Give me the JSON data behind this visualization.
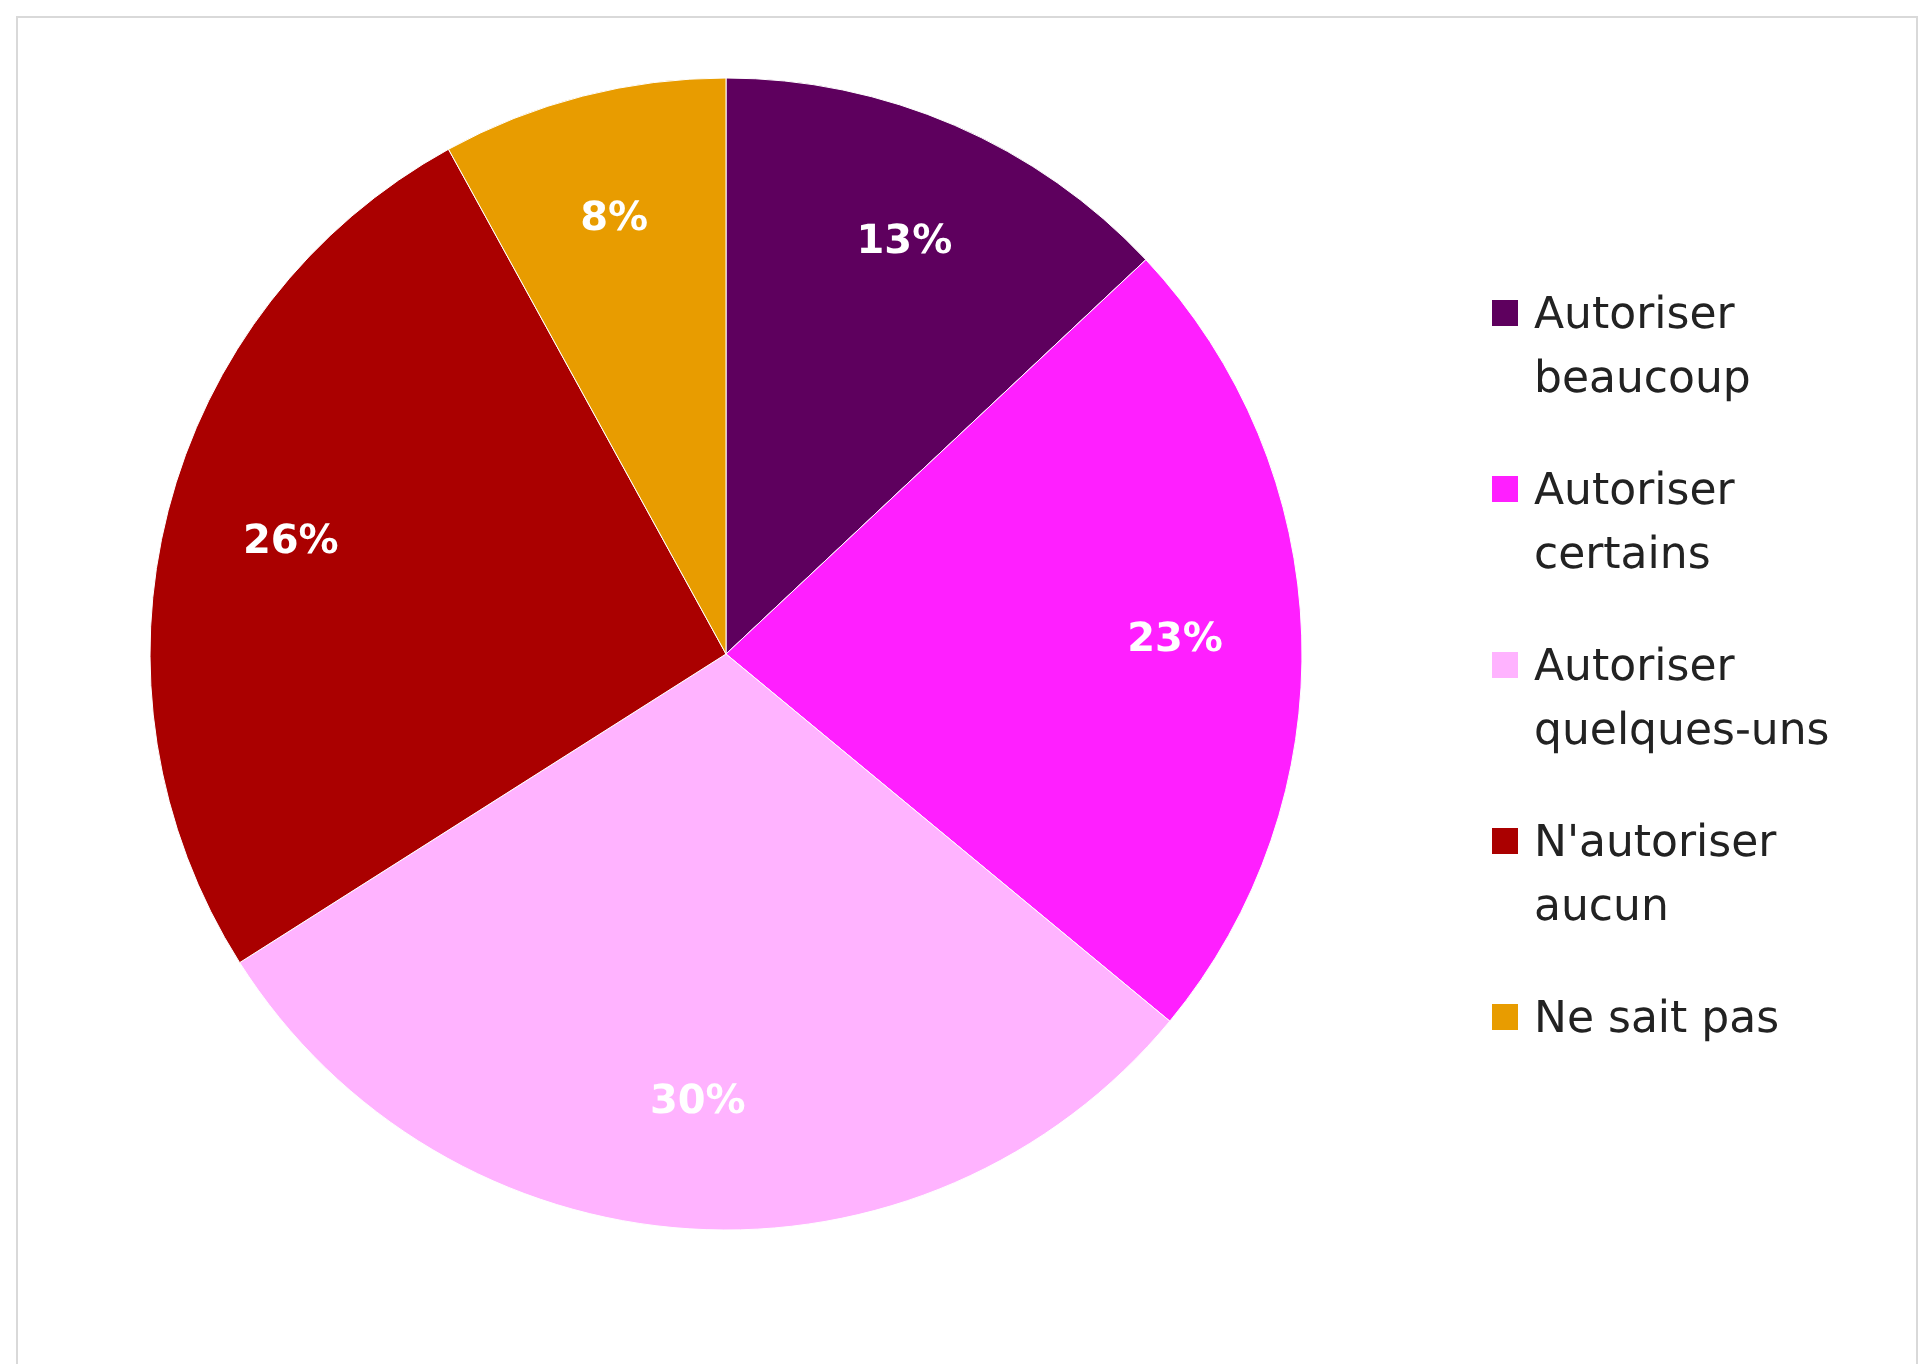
{
  "chart_data": {
    "type": "pie",
    "categories": [
      "Autoriser beaucoup",
      "Autoriser certains",
      "Autoriser quelques-uns",
      "N'autoriser aucun",
      "Ne sait pas"
    ],
    "values": [
      13,
      23,
      30,
      26,
      8
    ],
    "colors": [
      "#5e005e",
      "#ff1fff",
      "#ffb3ff",
      "#aa0000",
      "#e89c00"
    ],
    "value_labels": [
      "13%",
      "23%",
      "30%",
      "26%",
      "8%"
    ],
    "legend": "right"
  }
}
